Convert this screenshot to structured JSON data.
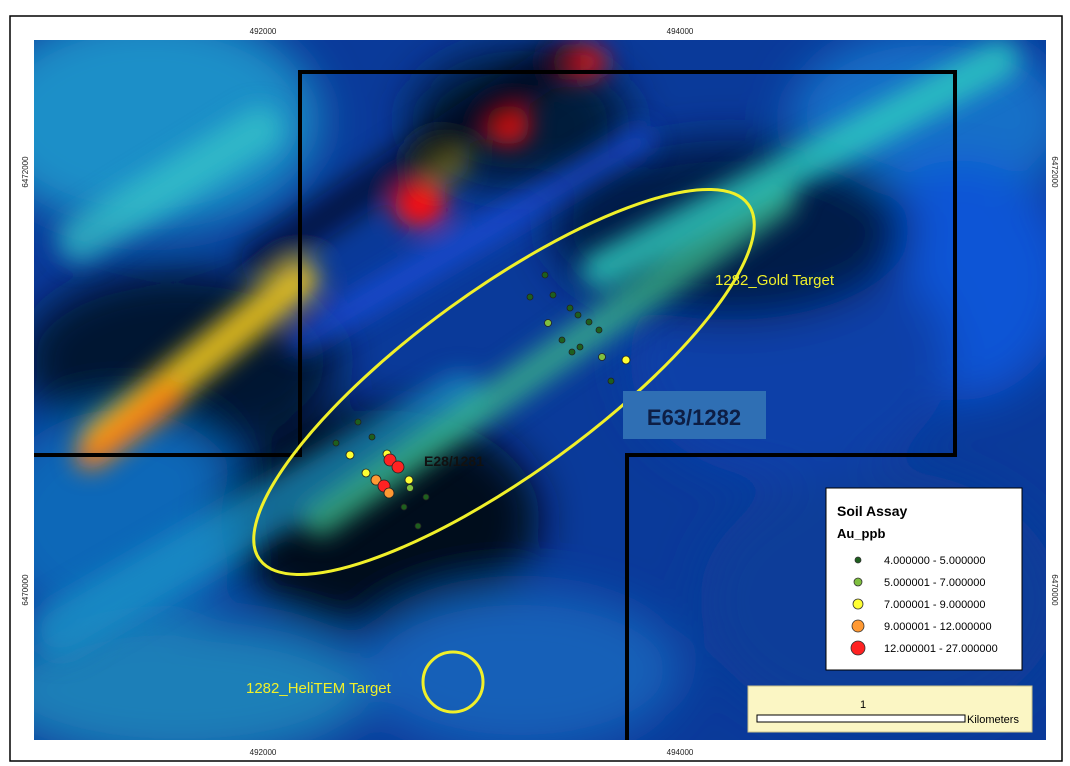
{
  "grid_labels": {
    "x_top": [
      "492000",
      "494000"
    ],
    "x_bottom": [
      "492000",
      "494000"
    ],
    "y_left": [
      "6472000",
      "6470000"
    ],
    "y_right": [
      "6472000",
      "6470000"
    ]
  },
  "tenement_label": "E63/1282",
  "sub_label": "E28/1281",
  "targets": {
    "gold": "1282_Gold Target",
    "helitem": "1282_HeliTEM Target"
  },
  "legend": {
    "title": "Soil Assay",
    "subtitle": "Au_ppb",
    "classes": [
      {
        "label": "4.000000 - 5.000000",
        "color": "#1e5f1e"
      },
      {
        "label": "5.000001 - 7.000000",
        "color": "#7fbf3f"
      },
      {
        "label": "7.000001 - 9.000000",
        "color": "#ffff33"
      },
      {
        "label": "9.000001 - 12.000000",
        "color": "#ff9933"
      },
      {
        "label": "12.000001 - 27.000000",
        "color": "#ff2222"
      }
    ]
  },
  "scale_bar": {
    "value": "1",
    "unit": "Kilometers"
  },
  "colors": {
    "target_outline": "#f0f02a",
    "tenement_boundary": "#000000",
    "label_box": "#2f6fb4",
    "label_text": "#0d1e45"
  }
}
